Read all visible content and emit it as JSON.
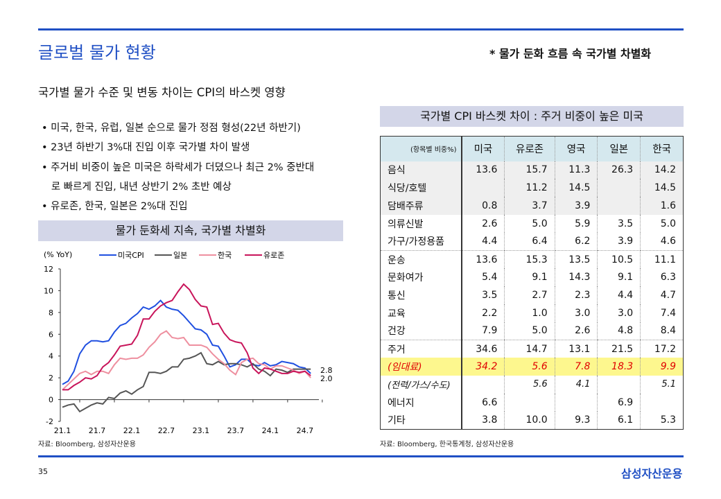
{
  "page": {
    "title": "글로벌 물가 현황",
    "headline": "* 물가 둔화 흐름 속 국가별 차별화",
    "subtitle": "국가별 물가 수준 및 변동 차이는 CPI의 바스켓 영향",
    "page_number": "35",
    "logo": "삼성자산운용",
    "accent": "#1f4fc4"
  },
  "bullets": [
    "• 미국, 한국, 유럽, 일본 순으로 물가 정점 형성(22년 하반기)",
    "• 23년 하반기 3%대 진입 이후 국가별 차이 발생",
    "• 주거비 비중이 높은 미국은 하락세가 더뎠으나  최근 2% 중반대",
    "   로 빠르게 진입, 내년 상반기 2% 초반 예상",
    "• 유로존, 한국, 일본은 2%대 진입"
  ],
  "chart_banner": "물가 둔화세 지속, 국가별 차별화",
  "chart_source": "자료: Bloomberg, 삼성자산운용",
  "chart_data": {
    "type": "line",
    "ylabel": "(% YoY)",
    "ylim": [
      -2,
      12
    ],
    "yticks": [
      -2,
      0,
      2,
      4,
      6,
      8,
      10,
      12
    ],
    "xticks": [
      "21.1",
      "21.7",
      "22.1",
      "22.7",
      "23.1",
      "23.7",
      "24.1",
      "24.7"
    ],
    "x_start": "2021-01",
    "x_end": "2024-08",
    "end_labels": [
      "2.8",
      "2.0"
    ],
    "series": [
      {
        "name": "미국CPI",
        "color": "#1f4fe0",
        "values": [
          1.4,
          1.7,
          2.6,
          4.2,
          5.0,
          5.4,
          5.4,
          5.3,
          5.4,
          6.2,
          6.8,
          7.0,
          7.5,
          7.9,
          8.5,
          8.3,
          8.6,
          9.1,
          8.5,
          8.3,
          8.2,
          7.7,
          7.1,
          6.5,
          6.4,
          6.0,
          5.0,
          4.9,
          4.0,
          3.0,
          3.2,
          3.7,
          3.7,
          3.2,
          3.1,
          3.4,
          3.1,
          3.2,
          3.5,
          3.4,
          3.3,
          3.0,
          2.9,
          2.4
        ]
      },
      {
        "name": "일본",
        "color": "#555555",
        "values": [
          -0.7,
          -0.5,
          -0.4,
          -1.1,
          -0.8,
          -0.5,
          -0.3,
          -0.4,
          0.2,
          0.1,
          0.6,
          0.8,
          0.5,
          0.9,
          1.2,
          2.5,
          2.5,
          2.4,
          2.6,
          3.0,
          3.0,
          3.7,
          3.8,
          4.0,
          4.3,
          3.3,
          3.2,
          3.5,
          3.2,
          3.3,
          3.3,
          3.2,
          3.0,
          3.3,
          2.8,
          2.6,
          2.2,
          2.8,
          2.7,
          2.5,
          2.8,
          2.8,
          2.8,
          2.8
        ]
      },
      {
        "name": "한국",
        "color": "#ee8f9f",
        "values": [
          0.9,
          1.4,
          1.9,
          2.4,
          2.6,
          2.3,
          2.6,
          2.6,
          2.4,
          3.2,
          3.8,
          3.7,
          3.8,
          3.8,
          4.1,
          4.8,
          5.3,
          6.0,
          6.3,
          5.7,
          5.6,
          5.7,
          5.0,
          5.0,
          5.0,
          4.8,
          4.2,
          3.7,
          3.3,
          2.7,
          2.3,
          3.4,
          3.7,
          3.8,
          3.3,
          3.2,
          2.8,
          3.1,
          3.1,
          2.9,
          2.7,
          2.4,
          2.6,
          2.0
        ]
      },
      {
        "name": "유로존",
        "color": "#c8145a",
        "values": [
          0.9,
          0.9,
          1.3,
          1.6,
          2.0,
          1.9,
          2.2,
          3.0,
          3.4,
          4.1,
          4.9,
          5.0,
          5.1,
          5.9,
          7.4,
          7.4,
          8.1,
          8.6,
          8.9,
          9.1,
          9.9,
          10.6,
          10.1,
          9.2,
          8.6,
          8.5,
          6.9,
          7.0,
          6.1,
          5.5,
          5.3,
          5.2,
          4.3,
          2.9,
          2.4,
          2.9,
          2.8,
          2.6,
          2.4,
          2.4,
          2.6,
          2.5,
          2.6,
          2.2
        ]
      }
    ]
  },
  "table": {
    "banner": "국가별 CPI 바스켓 차이 : 주거 비중이 높은 미국",
    "corner": "(항목별 비중%)",
    "columns": [
      "미국",
      "유로존",
      "영국",
      "일본",
      "한국"
    ],
    "rows": [
      {
        "label": "음식",
        "values": [
          "13.6",
          "15.7",
          "11.3",
          "26.3",
          "14.2"
        ],
        "cls": "gray"
      },
      {
        "label": "식당/호텔",
        "values": [
          "",
          "11.2",
          "14.5",
          "",
          "14.5"
        ],
        "cls": "gray"
      },
      {
        "label": "담배주류",
        "values": [
          "0.8",
          "3.7",
          "3.9",
          "",
          "1.6"
        ],
        "cls": "gray"
      },
      {
        "label": "의류신발",
        "values": [
          "2.6",
          "5.0",
          "5.9",
          "3.5",
          "5.0"
        ],
        "cls": ""
      },
      {
        "label": "가구/가정용품",
        "values": [
          "4.4",
          "6.4",
          "6.2",
          "3.9",
          "4.6"
        ],
        "cls": "sep"
      },
      {
        "label": "운송",
        "values": [
          "13.6",
          "15.3",
          "13.5",
          "10.5",
          "11.1"
        ],
        "cls": ""
      },
      {
        "label": "문화여가",
        "values": [
          "5.4",
          "9.1",
          "14.3",
          "9.1",
          "6.3"
        ],
        "cls": ""
      },
      {
        "label": "통신",
        "values": [
          "3.5",
          "2.7",
          "2.3",
          "4.4",
          "4.7"
        ],
        "cls": ""
      },
      {
        "label": "교육",
        "values": [
          "2.2",
          "1.0",
          "3.0",
          "3.0",
          "7.4"
        ],
        "cls": ""
      },
      {
        "label": "건강",
        "values": [
          "7.9",
          "5.0",
          "2.6",
          "4.8",
          "8.4"
        ],
        "cls": "sep"
      },
      {
        "label": "주거",
        "values": [
          "34.6",
          "14.7",
          "13.1",
          "21.5",
          "17.2"
        ],
        "cls": ""
      },
      {
        "label": "(임대료)",
        "values": [
          "34.2",
          "5.6",
          "7.8",
          "18.3",
          "9.9"
        ],
        "cls": "hl"
      },
      {
        "label": "(전력/가스/수도)",
        "values": [
          "",
          "5.6",
          "4.1",
          "",
          "5.1"
        ],
        "cls": "it"
      },
      {
        "label": "에너지",
        "values": [
          "6.6",
          "",
          "",
          "6.9",
          ""
        ],
        "cls": ""
      },
      {
        "label": "기타",
        "values": [
          "3.8",
          "10.0",
          "9.3",
          "6.1",
          "5.3"
        ],
        "cls": ""
      }
    ],
    "source": "자료: Bloomberg, 한국통계청, 삼성자산운용"
  }
}
